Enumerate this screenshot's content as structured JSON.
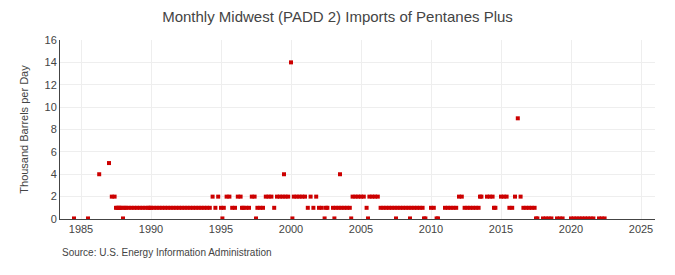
{
  "chart_data": {
    "type": "scatter",
    "title": "Monthly Midwest (PADD 2) Imports of Pentanes Plus",
    "ylabel": "Thousand Barrels per Day",
    "annotations": [
      "Source: U.S. Energy Information Administration"
    ],
    "color": "#cc0000",
    "marker": "square",
    "grid": true,
    "xlim": [
      1983.5,
      2026
    ],
    "ylim": [
      0,
      16
    ],
    "xticks": [
      1985,
      1990,
      1995,
      2000,
      2005,
      2010,
      2015,
      2020,
      2025
    ],
    "yticks": [
      0,
      2,
      4,
      6,
      8,
      10,
      12,
      14,
      16
    ],
    "x": [
      1984.5,
      1985.5,
      1986.3,
      1987.0,
      1987.2,
      1987.4,
      1987.5,
      1987.6,
      1987.7,
      1987.8,
      1987.9,
      1988.0,
      1988.1,
      1988.2,
      1988.4,
      1988.6,
      1988.8,
      1989.0,
      1989.2,
      1989.4,
      1989.6,
      1989.8,
      1989.9,
      1990.0,
      1990.2,
      1990.4,
      1990.6,
      1990.8,
      1991.0,
      1991.2,
      1991.4,
      1991.6,
      1991.8,
      1992.0,
      1992.2,
      1992.4,
      1992.6,
      1992.8,
      1993.0,
      1993.2,
      1993.4,
      1993.6,
      1993.8,
      1994.0,
      1994.2,
      1994.4,
      1994.6,
      1994.8,
      1995.0,
      1995.1,
      1995.2,
      1995.4,
      1995.6,
      1995.8,
      1996.0,
      1996.2,
      1996.4,
      1996.5,
      1996.6,
      1996.8,
      1997.0,
      1997.2,
      1997.4,
      1997.5,
      1997.6,
      1997.8,
      1998.0,
      1998.2,
      1998.4,
      1998.6,
      1998.8,
      1999.0,
      1999.2,
      1999.4,
      1999.5,
      1999.6,
      1999.8,
      2000.0,
      2000.1,
      2000.2,
      2000.4,
      2000.6,
      2000.8,
      2001.0,
      2001.2,
      2001.4,
      2001.6,
      2001.8,
      2002.0,
      2002.2,
      2002.4,
      2002.5,
      2002.6,
      2003.0,
      2003.1,
      2003.2,
      2003.4,
      2003.5,
      2003.6,
      2003.8,
      2004.0,
      2004.2,
      2004.3,
      2004.4,
      2004.6,
      2004.8,
      2005.0,
      2005.2,
      2005.4,
      2005.5,
      2005.6,
      2005.8,
      2006.0,
      2006.2,
      2006.4,
      2006.6,
      2006.8,
      2007.0,
      2007.2,
      2007.4,
      2007.5,
      2007.6,
      2007.8,
      2008.0,
      2008.2,
      2008.4,
      2008.5,
      2008.6,
      2008.8,
      2009.0,
      2009.2,
      2009.4,
      2009.5,
      2009.6,
      2010.0,
      2010.2,
      2010.4,
      2010.5,
      2011.0,
      2011.2,
      2011.4,
      2011.6,
      2011.8,
      2012.0,
      2012.2,
      2012.4,
      2012.6,
      2012.8,
      2013.0,
      2013.2,
      2013.4,
      2013.5,
      2013.6,
      2014.0,
      2014.2,
      2014.4,
      2014.5,
      2014.6,
      2015.0,
      2015.2,
      2015.4,
      2015.6,
      2015.8,
      2016.0,
      2016.2,
      2016.4,
      2016.6,
      2016.8,
      2017.0,
      2017.2,
      2017.4,
      2017.5,
      2017.6,
      2018.0,
      2018.2,
      2018.4,
      2018.6,
      2019.0,
      2019.2,
      2019.4,
      2020.0,
      2020.2,
      2020.4,
      2020.6,
      2020.8,
      2021.0,
      2021.2,
      2021.4,
      2021.6,
      2022.0,
      2022.2,
      2022.4
    ],
    "values": [
      0.05,
      0.05,
      4.0,
      5.0,
      2.0,
      2.0,
      1.0,
      1.0,
      1.0,
      1.0,
      1.0,
      0.05,
      1.0,
      1.0,
      1.0,
      1.0,
      1.0,
      1.0,
      1.0,
      1.0,
      1.0,
      1.0,
      1.0,
      1.0,
      1.0,
      1.0,
      1.0,
      1.0,
      1.0,
      1.0,
      1.0,
      1.0,
      1.0,
      1.0,
      1.0,
      1.0,
      1.0,
      1.0,
      1.0,
      1.0,
      1.0,
      1.0,
      1.0,
      1.0,
      1.0,
      2.0,
      1.0,
      2.0,
      1.0,
      0.05,
      1.0,
      2.0,
      2.0,
      1.0,
      1.0,
      2.0,
      2.0,
      1.0,
      1.0,
      1.0,
      1.0,
      2.0,
      2.0,
      0.05,
      1.0,
      1.0,
      1.0,
      2.0,
      2.0,
      2.0,
      1.0,
      2.0,
      2.0,
      2.0,
      4.0,
      2.0,
      2.0,
      14.0,
      0.05,
      2.0,
      2.0,
      2.0,
      2.0,
      2.0,
      1.0,
      2.0,
      1.0,
      2.0,
      1.0,
      1.0,
      0.05,
      1.0,
      1.0,
      1.0,
      0.05,
      1.0,
      1.0,
      4.0,
      1.0,
      1.0,
      1.0,
      1.0,
      0.05,
      2.0,
      2.0,
      2.0,
      2.0,
      2.0,
      1.0,
      0.05,
      2.0,
      2.0,
      2.0,
      2.0,
      1.0,
      1.0,
      1.0,
      1.0,
      1.0,
      1.0,
      0.05,
      1.0,
      1.0,
      1.0,
      1.0,
      1.0,
      0.05,
      1.0,
      1.0,
      1.0,
      1.0,
      1.0,
      0.05,
      0.05,
      1.0,
      1.0,
      0.05,
      0.05,
      1.0,
      1.0,
      1.0,
      1.0,
      1.0,
      2.0,
      2.0,
      1.0,
      1.0,
      1.0,
      1.0,
      1.0,
      1.0,
      2.0,
      2.0,
      2.0,
      2.0,
      2.0,
      1.0,
      1.0,
      2.0,
      2.0,
      2.0,
      1.0,
      1.0,
      2.0,
      9.0,
      2.0,
      1.0,
      1.0,
      1.0,
      1.0,
      1.0,
      0.05,
      0.05,
      0.05,
      0.05,
      0.05,
      0.05,
      0.05,
      0.05,
      0.05,
      0.05,
      0.05,
      0.05,
      0.05,
      0.05,
      0.05,
      0.05,
      0.05,
      0.05,
      0.05,
      0.05,
      0.05
    ]
  }
}
